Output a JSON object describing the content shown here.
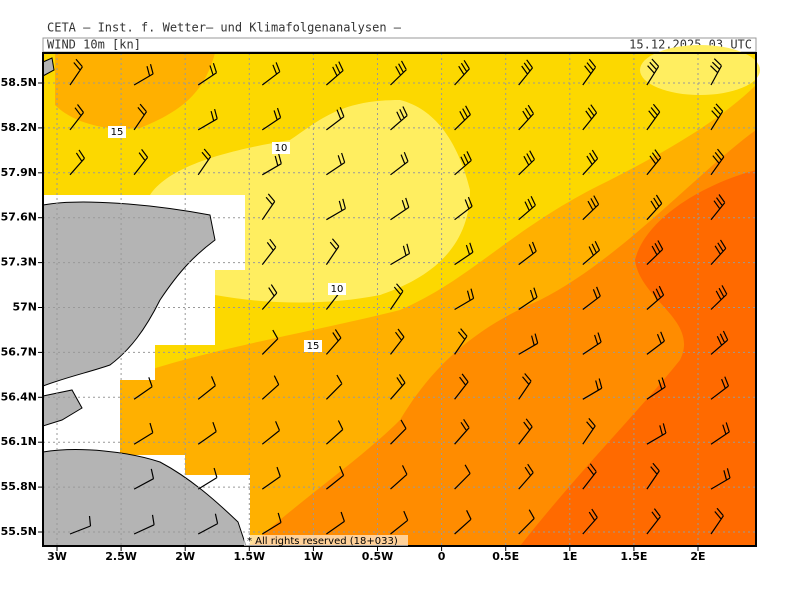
{
  "header": {
    "institute": "CETA – Inst. f. Wetter– und Klimafolgenanalysen –",
    "field": "WIND 10m [kn]",
    "valid_time": "15.12.2025 03 UTC"
  },
  "map": {
    "lon_labels": [
      "3W",
      "2.5W",
      "2W",
      "1.5W",
      "1W",
      "0.5W",
      "0",
      "0.5E",
      "1E",
      "1.5E",
      "2E"
    ],
    "lat_labels": [
      "58.5N",
      "58.2N",
      "57.9N",
      "57.6N",
      "57.3N",
      "57N",
      "56.7N",
      "56.4N",
      "56.1N",
      "55.8N",
      "55.5N"
    ],
    "contour_labels": [
      "15",
      "10",
      "10",
      "15"
    ]
  },
  "footer": "* All rights reserved (18+033)"
}
